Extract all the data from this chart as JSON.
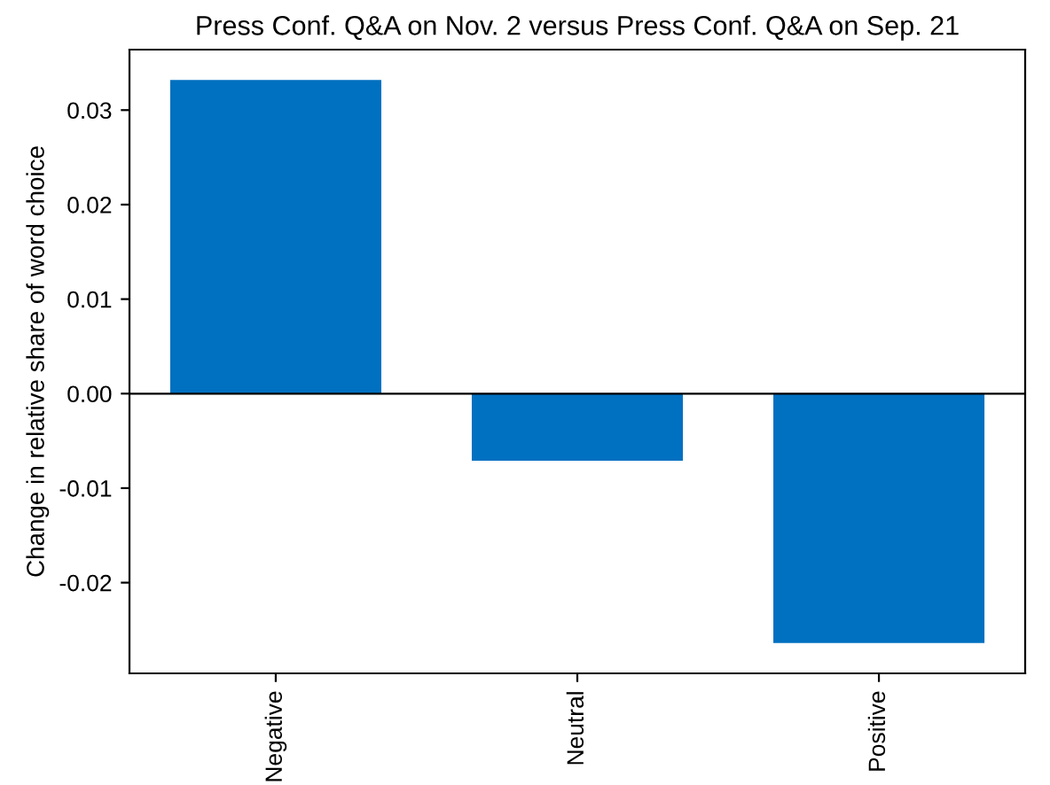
{
  "chart_data": {
    "type": "bar",
    "title": "Press Conf. Q&A on Nov. 2 versus Press Conf. Q&A on Sep. 21",
    "ylabel": "Change in relative share of word choice",
    "categories": [
      "Negative",
      "Neutral",
      "Positive"
    ],
    "values": [
      0.0332,
      -0.0071,
      -0.0264
    ],
    "color": "#0070c0",
    "ylim": [
      -0.0296,
      0.0364
    ],
    "yticks": [
      {
        "value": -0.02,
        "label": "-0.02"
      },
      {
        "value": -0.01,
        "label": "-0.01"
      },
      {
        "value": 0.0,
        "label": "0.00"
      },
      {
        "value": 0.01,
        "label": "0.01"
      },
      {
        "value": 0.02,
        "label": "0.02"
      },
      {
        "value": 0.03,
        "label": "0.03"
      }
    ],
    "ref_lines": [
      {
        "axis": "y",
        "value": 0,
        "color": "#000000"
      }
    ],
    "grid": false
  }
}
